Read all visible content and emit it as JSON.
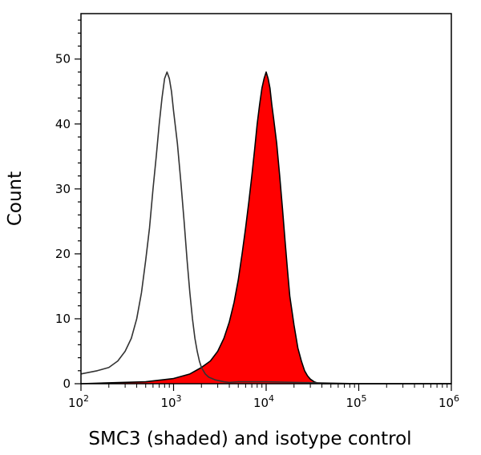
{
  "chart_data": {
    "type": "area",
    "title": "",
    "xlabel": "SMC3 (shaded) and isotype control",
    "ylabel": "Count",
    "x_scale": "log",
    "xlim": [
      100,
      1000000
    ],
    "ylim": [
      0,
      57
    ],
    "x_ticks": [
      {
        "value": 100,
        "base": "10",
        "exp": "2"
      },
      {
        "value": 1000,
        "base": "10",
        "exp": "3"
      },
      {
        "value": 10000,
        "base": "10",
        "exp": "4"
      },
      {
        "value": 100000,
        "base": "10",
        "exp": "5"
      },
      {
        "value": 1000000,
        "base": "10",
        "exp": "6"
      }
    ],
    "y_ticks": [
      0,
      10,
      20,
      30,
      40,
      50
    ],
    "grid": false,
    "legend": "none",
    "colors": {
      "shaded_fill": "#ff0000",
      "shaded_outline": "#000000",
      "isotype_line": "#333333"
    },
    "series": [
      {
        "style": "shaded",
        "x": [
          100,
          500,
          1000,
          1500,
          2000,
          2500,
          3000,
          3500,
          4000,
          4500,
          5000,
          5500,
          6000,
          6500,
          7000,
          7500,
          8000,
          8500,
          9000,
          9500,
          10000,
          10500,
          11000,
          11500,
          12000,
          13000,
          14000,
          15000,
          16000,
          17000,
          18000,
          20000,
          22000,
          24000,
          26000,
          28000,
          30000,
          33000,
          36000,
          40000,
          45000,
          60000,
          100000,
          1000000
        ],
        "y": [
          0,
          0.3,
          0.8,
          1.5,
          2.5,
          3.5,
          5,
          7,
          9.5,
          12.5,
          16,
          20,
          24,
          28,
          32,
          36,
          40,
          43,
          45.5,
          47,
          48,
          47,
          45.5,
          43,
          41,
          37,
          32,
          27,
          22,
          17.5,
          13.5,
          9,
          5.5,
          3.5,
          2,
          1.2,
          0.7,
          0.3,
          0.1,
          0,
          0,
          0,
          0,
          0
        ]
      },
      {
        "style": "line",
        "x": [
          100,
          150,
          200,
          250,
          300,
          350,
          400,
          450,
          500,
          550,
          600,
          650,
          700,
          750,
          800,
          850,
          900,
          950,
          1000,
          1100,
          1200,
          1300,
          1400,
          1500,
          1600,
          1700,
          1800,
          1900,
          2000,
          2200,
          2400,
          2600,
          2800,
          3000,
          3500,
          4000,
          5000,
          10000,
          100000,
          1000000
        ],
        "y": [
          1.5,
          2,
          2.5,
          3.5,
          5,
          7,
          10,
          14,
          19,
          24,
          30,
          35,
          40,
          44,
          47,
          48,
          47,
          45,
          42,
          37,
          31,
          25,
          19,
          14,
          10,
          7,
          5,
          3.5,
          2.5,
          1.5,
          1,
          0.8,
          0.6,
          0.5,
          0.3,
          0.2,
          0.3,
          0.3,
          0,
          0
        ]
      }
    ]
  }
}
